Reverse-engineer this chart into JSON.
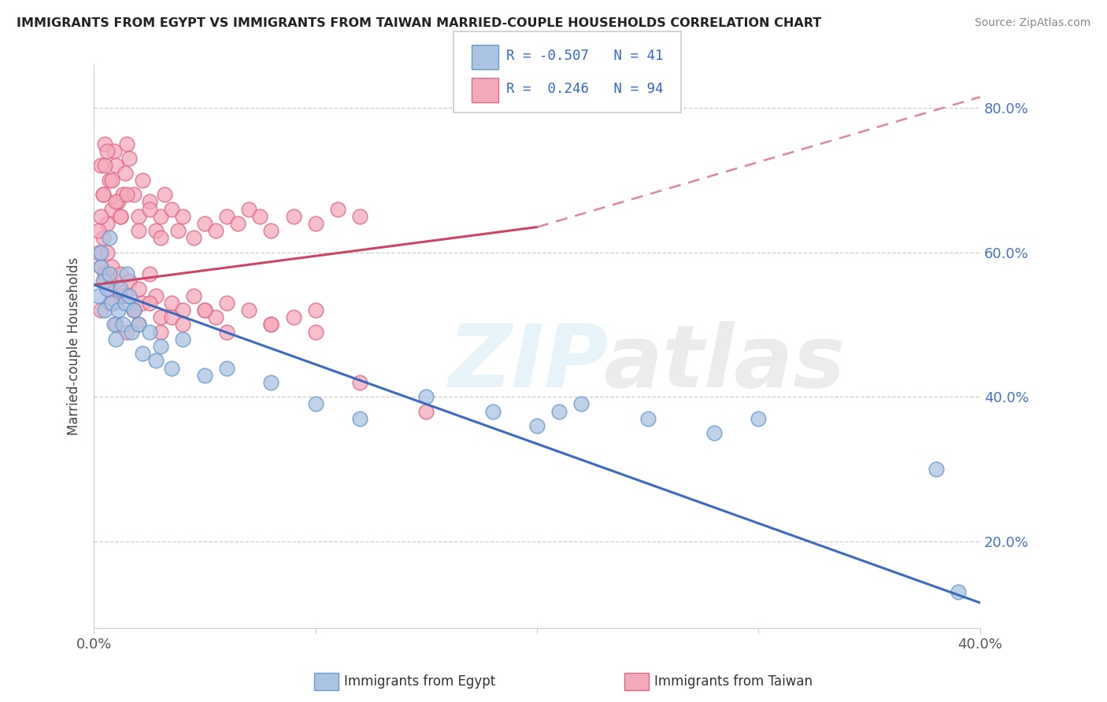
{
  "title": "IMMIGRANTS FROM EGYPT VS IMMIGRANTS FROM TAIWAN MARRIED-COUPLE HOUSEHOLDS CORRELATION CHART",
  "source": "Source: ZipAtlas.com",
  "ylabel": "Married-couple Households",
  "xlim": [
    0.0,
    0.4
  ],
  "ylim": [
    0.08,
    0.86
  ],
  "yticks": [
    0.2,
    0.4,
    0.6,
    0.8
  ],
  "ytick_labels": [
    "20.0%",
    "40.0%",
    "60.0%",
    "80.0%"
  ],
  "egypt_color": "#aac4e2",
  "taiwan_color": "#f5aabb",
  "egypt_edge": "#6699cc",
  "taiwan_edge": "#dd6688",
  "line_egypt": "#3a6bbf",
  "line_taiwan": "#cc4466",
  "line_taiwan_dash": "#dd8899",
  "R_egypt": -0.507,
  "N_egypt": 41,
  "R_taiwan": 0.246,
  "N_taiwan": 94,
  "egypt_line_x0": 0.0,
  "egypt_line_y0": 0.555,
  "egypt_line_x1": 0.4,
  "egypt_line_y1": 0.115,
  "taiwan_line_solid_x0": 0.0,
  "taiwan_line_solid_y0": 0.555,
  "taiwan_line_solid_x1": 0.2,
  "taiwan_line_solid_y1": 0.635,
  "taiwan_line_dash_x0": 0.2,
  "taiwan_line_dash_y0": 0.635,
  "taiwan_line_dash_x1": 0.4,
  "taiwan_line_dash_y1": 0.815,
  "egypt_x": [
    0.002,
    0.003,
    0.004,
    0.005,
    0.006,
    0.007,
    0.008,
    0.009,
    0.01,
    0.011,
    0.012,
    0.013,
    0.014,
    0.015,
    0.016,
    0.017,
    0.018,
    0.02,
    0.022,
    0.025,
    0.028,
    0.03,
    0.035,
    0.04,
    0.05,
    0.06,
    0.08,
    0.1,
    0.12,
    0.15,
    0.18,
    0.2,
    0.21,
    0.22,
    0.25,
    0.28,
    0.3,
    0.38,
    0.39,
    0.003,
    0.007
  ],
  "egypt_y": [
    0.54,
    0.58,
    0.56,
    0.52,
    0.55,
    0.57,
    0.53,
    0.5,
    0.48,
    0.52,
    0.55,
    0.5,
    0.53,
    0.57,
    0.54,
    0.49,
    0.52,
    0.5,
    0.46,
    0.49,
    0.45,
    0.47,
    0.44,
    0.48,
    0.43,
    0.44,
    0.42,
    0.39,
    0.37,
    0.4,
    0.38,
    0.36,
    0.38,
    0.39,
    0.37,
    0.35,
    0.37,
    0.3,
    0.13,
    0.6,
    0.62
  ],
  "taiwan_x": [
    0.002,
    0.003,
    0.004,
    0.005,
    0.006,
    0.007,
    0.008,
    0.009,
    0.01,
    0.011,
    0.012,
    0.013,
    0.014,
    0.015,
    0.016,
    0.018,
    0.02,
    0.022,
    0.025,
    0.028,
    0.03,
    0.032,
    0.035,
    0.038,
    0.04,
    0.045,
    0.05,
    0.055,
    0.06,
    0.065,
    0.07,
    0.075,
    0.08,
    0.09,
    0.1,
    0.11,
    0.12,
    0.003,
    0.004,
    0.005,
    0.006,
    0.007,
    0.008,
    0.009,
    0.01,
    0.012,
    0.014,
    0.016,
    0.018,
    0.02,
    0.022,
    0.025,
    0.028,
    0.03,
    0.035,
    0.04,
    0.045,
    0.05,
    0.055,
    0.06,
    0.07,
    0.08,
    0.09,
    0.1,
    0.003,
    0.005,
    0.007,
    0.01,
    0.012,
    0.015,
    0.018,
    0.02,
    0.025,
    0.03,
    0.035,
    0.04,
    0.05,
    0.06,
    0.08,
    0.1,
    0.002,
    0.003,
    0.004,
    0.005,
    0.006,
    0.008,
    0.01,
    0.012,
    0.015,
    0.02,
    0.025,
    0.03,
    0.12,
    0.15
  ],
  "taiwan_y": [
    0.6,
    0.72,
    0.68,
    0.75,
    0.64,
    0.7,
    0.66,
    0.74,
    0.72,
    0.67,
    0.65,
    0.68,
    0.71,
    0.75,
    0.73,
    0.68,
    0.65,
    0.7,
    0.67,
    0.63,
    0.65,
    0.68,
    0.66,
    0.63,
    0.65,
    0.62,
    0.64,
    0.63,
    0.65,
    0.64,
    0.66,
    0.65,
    0.63,
    0.65,
    0.64,
    0.66,
    0.65,
    0.58,
    0.62,
    0.57,
    0.6,
    0.55,
    0.58,
    0.53,
    0.56,
    0.57,
    0.54,
    0.56,
    0.52,
    0.55,
    0.53,
    0.57,
    0.54,
    0.51,
    0.53,
    0.52,
    0.54,
    0.52,
    0.51,
    0.53,
    0.52,
    0.5,
    0.51,
    0.52,
    0.52,
    0.56,
    0.53,
    0.5,
    0.54,
    0.49,
    0.52,
    0.5,
    0.53,
    0.49,
    0.51,
    0.5,
    0.52,
    0.49,
    0.5,
    0.49,
    0.63,
    0.65,
    0.68,
    0.72,
    0.74,
    0.7,
    0.67,
    0.65,
    0.68,
    0.63,
    0.66,
    0.62,
    0.42,
    0.38
  ]
}
